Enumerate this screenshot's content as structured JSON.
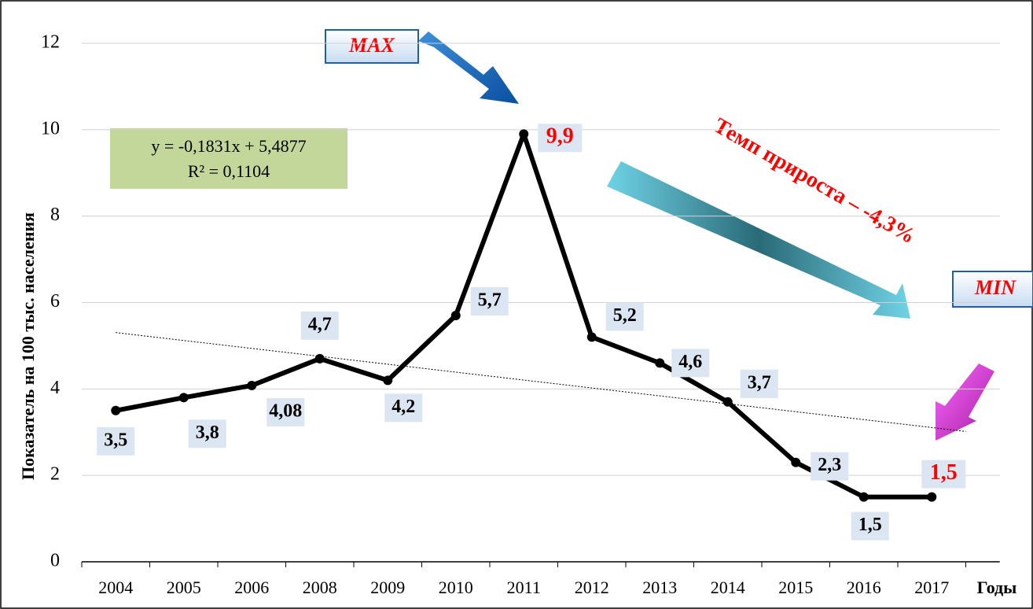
{
  "chart_data": {
    "type": "line",
    "y_axis_label": "Показатель на 100 тыс. населения",
    "x_axis_label": "Годы",
    "categories": [
      "2004",
      "2005",
      "2006",
      "2008",
      "2009",
      "2010",
      "2011",
      "2012",
      "2013",
      "2014",
      "2015",
      "2016",
      "2017"
    ],
    "series": [
      {
        "color": "#000000",
        "values": [
          3.5,
          3.8,
          4.08,
          4.7,
          4.2,
          5.7,
          9.9,
          5.2,
          4.6,
          3.7,
          2.3,
          1.5,
          1.5
        ],
        "value_labels": [
          "3,5",
          "3,8",
          "4,08",
          "4,7",
          "4,2",
          "5,7",
          "9,9",
          "5,2",
          "4,6",
          "3,7",
          "2,3",
          "1,5",
          "1,5"
        ],
        "value_label_colors": [
          "#000000",
          "#000000",
          "#000000",
          "#000000",
          "#000000",
          "#000000",
          "#ff0000",
          "#000000",
          "#000000",
          "#000000",
          "#000000",
          "#000000",
          "#ff0000"
        ]
      }
    ],
    "ylim": [
      0,
      12
    ],
    "yticks": [
      0,
      2,
      4,
      6,
      8,
      10,
      12
    ],
    "grid": true,
    "trendline": {
      "slope": -0.1831,
      "intercept": 5.4877,
      "equation": "y = -0,1831x + 5,4877",
      "r2": "R² = 0,1104"
    },
    "annotations": {
      "max": "MAX",
      "min": "MIN",
      "growth": "Темп прироста – -4,3%"
    }
  }
}
